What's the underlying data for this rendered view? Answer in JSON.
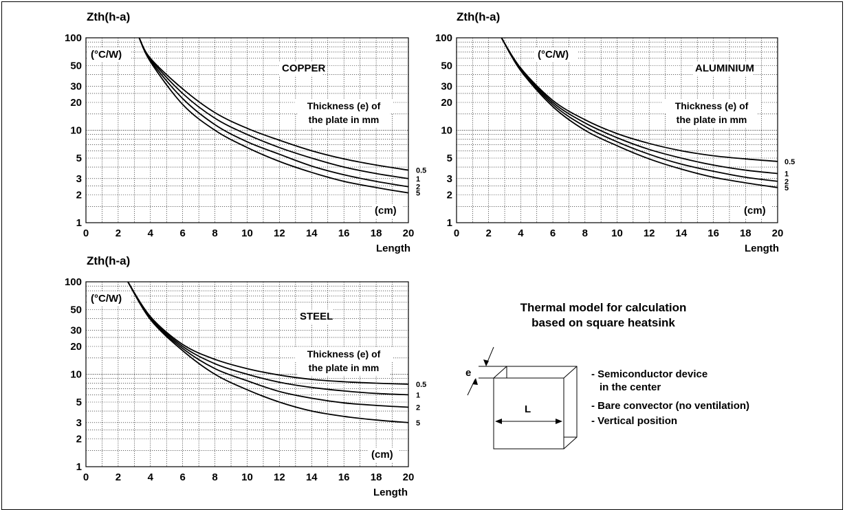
{
  "charts": {
    "y_axis_title": "Zth(h-a)",
    "unit_label": "(°C/W)",
    "x_unit": "(cm)",
    "x_axis_title": "Length",
    "thickness_note_line1": "Thickness (e) of",
    "thickness_note_line2": "the plate in mm"
  },
  "chart_data": [
    {
      "type": "line",
      "title": "COPPER",
      "xlabel": "Length",
      "ylabel": "Zth(h-a)",
      "x_unit": "(cm)",
      "y_unit": "(°C/W)",
      "y_scale": "log",
      "xlim": [
        0,
        20
      ],
      "ylim": [
        1,
        100
      ],
      "x_ticks": [
        0,
        2,
        4,
        6,
        8,
        10,
        12,
        14,
        16,
        18,
        20
      ],
      "y_ticks": [
        1,
        2,
        3,
        5,
        10,
        20,
        30,
        50,
        100
      ],
      "grid": true,
      "series": [
        {
          "name": "0.5",
          "x": [
            3.3,
            4,
            6,
            8,
            10,
            12,
            14,
            16,
            18,
            20
          ],
          "y": [
            100,
            60,
            28,
            15.5,
            10.5,
            7.8,
            6,
            4.9,
            4.2,
            3.7
          ]
        },
        {
          "name": "1",
          "x": [
            3.3,
            4,
            6,
            8,
            10,
            12,
            14,
            16,
            18,
            20
          ],
          "y": [
            100,
            59,
            25,
            13.5,
            9,
            6.5,
            5,
            4,
            3.4,
            3.0
          ]
        },
        {
          "name": "2",
          "x": [
            3.3,
            4,
            6,
            8,
            10,
            12,
            14,
            16,
            18,
            20
          ],
          "y": [
            100,
            57,
            22,
            11.5,
            7.5,
            5.5,
            4.1,
            3.3,
            2.8,
            2.45
          ]
        },
        {
          "name": "5",
          "x": [
            3.3,
            4,
            6,
            8,
            10,
            12,
            14,
            16,
            18,
            20
          ],
          "y": [
            100,
            55,
            19,
            10,
            6.5,
            4.6,
            3.5,
            2.8,
            2.4,
            2.1
          ]
        }
      ]
    },
    {
      "type": "line",
      "title": "ALUMINIUM",
      "xlabel": "Length",
      "ylabel": "Zth(h-a)",
      "x_unit": "(cm)",
      "y_unit": "(°C/W)",
      "y_scale": "log",
      "xlim": [
        0,
        20
      ],
      "ylim": [
        1,
        100
      ],
      "x_ticks": [
        0,
        2,
        4,
        6,
        8,
        10,
        12,
        14,
        16,
        18,
        20
      ],
      "y_ticks": [
        1,
        2,
        3,
        5,
        10,
        20,
        30,
        50,
        100
      ],
      "grid": true,
      "series": [
        {
          "name": "0.5",
          "x": [
            2.8,
            4,
            6,
            8,
            10,
            12,
            14,
            16,
            18,
            20
          ],
          "y": [
            100,
            47,
            21,
            13,
            9.2,
            7.2,
            6.0,
            5.3,
            4.9,
            4.6
          ]
        },
        {
          "name": "1",
          "x": [
            2.8,
            4,
            6,
            8,
            10,
            12,
            14,
            16,
            18,
            20
          ],
          "y": [
            100,
            46,
            20,
            12,
            8.3,
            6.2,
            5.0,
            4.2,
            3.7,
            3.4
          ]
        },
        {
          "name": "2",
          "x": [
            2.8,
            4,
            6,
            8,
            10,
            12,
            14,
            16,
            18,
            20
          ],
          "y": [
            100,
            45,
            19,
            11,
            7.5,
            5.5,
            4.3,
            3.6,
            3.1,
            2.8
          ]
        },
        {
          "name": "5",
          "x": [
            2.8,
            4,
            6,
            8,
            10,
            12,
            14,
            16,
            18,
            20
          ],
          "y": [
            100,
            44,
            18,
            10,
            6.8,
            4.9,
            3.8,
            3.1,
            2.7,
            2.4
          ]
        }
      ]
    },
    {
      "type": "line",
      "title": "STEEL",
      "xlabel": "Length",
      "ylabel": "Zth(h-a)",
      "x_unit": "(cm)",
      "y_unit": "(°C/W)",
      "y_scale": "log",
      "xlim": [
        0,
        20
      ],
      "ylim": [
        1,
        100
      ],
      "x_ticks": [
        0,
        2,
        4,
        6,
        8,
        10,
        12,
        14,
        16,
        18,
        20
      ],
      "y_ticks": [
        1,
        2,
        3,
        5,
        10,
        20,
        30,
        50,
        100
      ],
      "grid": true,
      "series": [
        {
          "name": "0.5",
          "x": [
            2.6,
            4,
            6,
            8,
            10,
            12,
            14,
            16,
            18,
            20
          ],
          "y": [
            100,
            42,
            21,
            14.5,
            11.5,
            9.8,
            8.8,
            8.3,
            8.0,
            7.8
          ]
        },
        {
          "name": "1",
          "x": [
            2.6,
            4,
            6,
            8,
            10,
            12,
            14,
            16,
            18,
            20
          ],
          "y": [
            100,
            41,
            20,
            13,
            10,
            8.2,
            7.2,
            6.6,
            6.2,
            6.0
          ]
        },
        {
          "name": "2",
          "x": [
            2.6,
            4,
            6,
            8,
            10,
            12,
            14,
            16,
            18,
            20
          ],
          "y": [
            100,
            40,
            19,
            11.5,
            8.5,
            6.5,
            5.5,
            4.9,
            4.6,
            4.4
          ]
        },
        {
          "name": "5",
          "x": [
            2.6,
            4,
            6,
            8,
            10,
            12,
            14,
            16,
            18,
            20
          ],
          "y": [
            100,
            39,
            18,
            10,
            6.8,
            5.0,
            4.0,
            3.5,
            3.2,
            3.0
          ]
        }
      ]
    }
  ],
  "model": {
    "title_line1": "Thermal model for calculation",
    "title_line2": "based on square heatsink",
    "e_label": "e",
    "l_label": "L",
    "bullets": [
      "- Semiconductor device",
      "in the center",
      "- Bare convector (no ventilation)",
      "- Vertical position"
    ]
  }
}
